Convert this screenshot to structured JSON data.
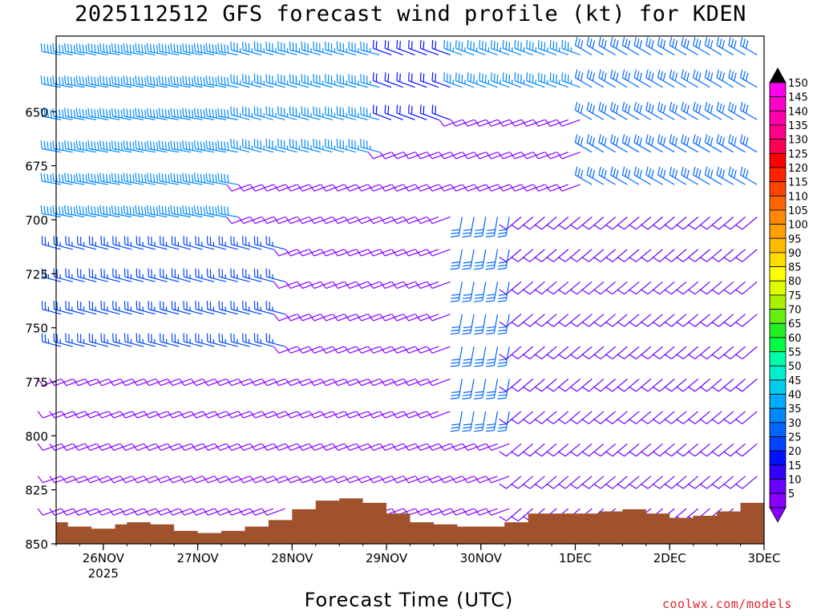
{
  "title": "2025112512 GFS forecast wind profile (kt) for KDEN",
  "credit": "coolwx.com/models",
  "chart_data": {
    "type": "wind-barb-profile",
    "title": "2025112512 GFS forecast wind profile (kt) for KDEN",
    "xlabel": "Forecast Time (UTC)",
    "ylabel": "",
    "x_ticks": [
      {
        "label": "26NOV",
        "sub": "2025"
      },
      {
        "label": "27NOV",
        "sub": ""
      },
      {
        "label": "28NOV",
        "sub": ""
      },
      {
        "label": "29NOV",
        "sub": ""
      },
      {
        "label": "30NOV",
        "sub": ""
      },
      {
        "label": "1DEC",
        "sub": ""
      },
      {
        "label": "2DEC",
        "sub": ""
      },
      {
        "label": "3DEC",
        "sub": ""
      }
    ],
    "x_range_hours": [
      0,
      180
    ],
    "y_ticks": [
      "650",
      "675",
      "700",
      "725",
      "750",
      "775",
      "800",
      "825",
      "850"
    ],
    "y_range_hpa": [
      850,
      615
    ],
    "pressure_levels": [
      620,
      635,
      650,
      665,
      680,
      695,
      710,
      725,
      740,
      755,
      770,
      785,
      800,
      815,
      830,
      845
    ],
    "time_step_hours": 3,
    "colorbar": {
      "labels": [
        "5",
        "10",
        "15",
        "20",
        "25",
        "30",
        "35",
        "40",
        "45",
        "50",
        "55",
        "60",
        "65",
        "70",
        "75",
        "80",
        "85",
        "90",
        "95",
        "100",
        "105",
        "110",
        "115",
        "120",
        "125",
        "130",
        "135",
        "140",
        "145",
        "150"
      ],
      "colors": [
        "#8800ff",
        "#6a00ff",
        "#3300ff",
        "#0011ff",
        "#0044ff",
        "#0066ff",
        "#0088ff",
        "#00aaff",
        "#00ccee",
        "#00eecc",
        "#00ffaa",
        "#00ff44",
        "#22ee22",
        "#66ee11",
        "#aaee00",
        "#ddff00",
        "#ffff00",
        "#ffdd00",
        "#ffbb00",
        "#ffa000",
        "#ff8800",
        "#ff6600",
        "#ff4400",
        "#ff2200",
        "#ff0000",
        "#ff0055",
        "#ff0088",
        "#ff00aa",
        "#ff00cc",
        "#ff00ee"
      ],
      "arrow_top_color": "#000000",
      "arrow_bottom_color": "#8800ff"
    },
    "terrain": {
      "color": "#a0522d",
      "hours": [
        0,
        3,
        6,
        9,
        12,
        15,
        18,
        24,
        30,
        36,
        42,
        48,
        54,
        60,
        66,
        72,
        78,
        84,
        90,
        96,
        102,
        108,
        114,
        120,
        126,
        132,
        138,
        144,
        150,
        156,
        162,
        168,
        174,
        180
      ],
      "surface_hpa": [
        840,
        842,
        842,
        843,
        843,
        841,
        840,
        841,
        844,
        845,
        844,
        842,
        839,
        834,
        830,
        829,
        831,
        836,
        840,
        841,
        842,
        842,
        840,
        836,
        836,
        836,
        835,
        834,
        836,
        838,
        837,
        835,
        831,
        829
      ]
    },
    "wind_regimes": [
      {
        "h0": 0,
        "h1": 48,
        "p0": 615,
        "p1": 700,
        "speed": 38,
        "dir": 280
      },
      {
        "h0": 48,
        "h1": 84,
        "p0": 615,
        "p1": 680,
        "speed": 36,
        "dir": 285
      },
      {
        "h0": 84,
        "h1": 102,
        "p0": 615,
        "p1": 660,
        "speed": 22,
        "dir": 290
      },
      {
        "h0": 102,
        "h1": 135,
        "p0": 615,
        "p1": 650,
        "speed": 35,
        "dir": 290
      },
      {
        "h0": 135,
        "h1": 180,
        "p0": 615,
        "p1": 690,
        "speed": 30,
        "dir": 300
      },
      {
        "h0": 0,
        "h1": 60,
        "p0": 700,
        "p1": 770,
        "speed": 25,
        "dir": 285
      },
      {
        "h0": 100,
        "h1": 115,
        "p0": 690,
        "p1": 790,
        "speed": 30,
        "dir": 190
      },
      {
        "h0": 115,
        "h1": 180,
        "p0": 690,
        "p1": 850,
        "speed": 10,
        "dir": 230
      },
      {
        "h0": 0,
        "h1": 180,
        "p0": 770,
        "p1": 850,
        "speed": 8,
        "dir": 250
      }
    ]
  }
}
